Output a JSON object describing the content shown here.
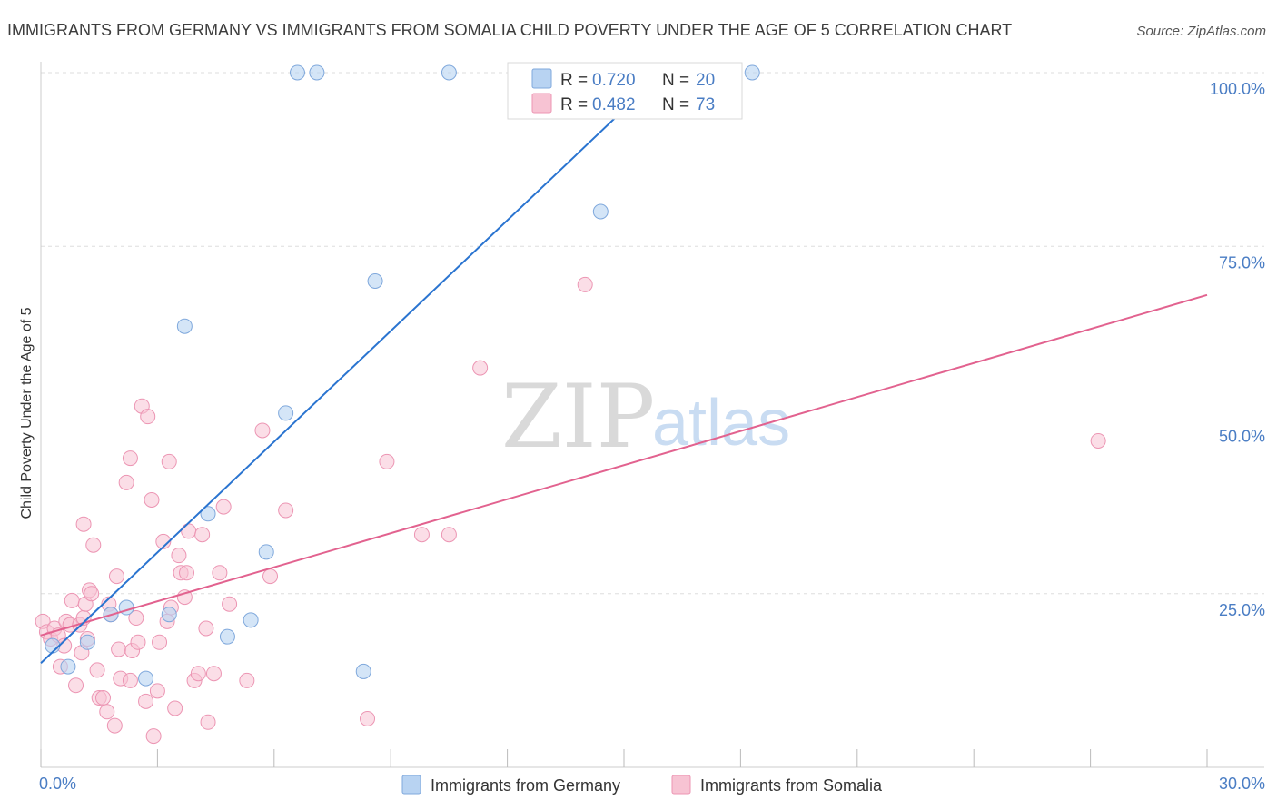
{
  "title": "IMMIGRANTS FROM GERMANY VS IMMIGRANTS FROM SOMALIA CHILD POVERTY UNDER THE AGE OF 5 CORRELATION CHART",
  "source": "Source: ZipAtlas.com",
  "watermark": {
    "zip": "ZIP",
    "atlas": "atlas"
  },
  "legend": {
    "r_label": "R = ",
    "n_label": "N = ",
    "entries": [
      {
        "r": "0.720",
        "n": "20"
      },
      {
        "r": "0.482",
        "n": "73"
      }
    ]
  },
  "colors": {
    "germany_fill": "#b8d3f2",
    "germany_stroke": "#7fa8dc",
    "germany_line": "#2a74d0",
    "somalia_fill": "#f7c3d3",
    "somalia_stroke": "#ec95b3",
    "somalia_line": "#e2628f",
    "tick_color": "#4a7dc4",
    "grid": "#dddddd"
  },
  "chart_data": {
    "type": "scatter",
    "xlabel": "",
    "ylabel": "Child Poverty Under the Age of 5",
    "xlim": [
      0,
      30
    ],
    "ylim": [
      0,
      100
    ],
    "x_tick_labels": [
      "0.0%",
      "30.0%"
    ],
    "y_tick_labels": [
      "25.0%",
      "50.0%",
      "75.0%",
      "100.0%"
    ],
    "y_ticks": [
      25,
      50,
      75,
      100
    ],
    "x_minor_ticks": [
      0,
      3,
      6,
      9,
      12,
      15,
      18,
      21,
      24,
      27,
      30
    ],
    "grid": true,
    "legend_position": "top-center",
    "series": [
      {
        "name": "Immigrants from Germany",
        "trend": {
          "x": [
            0,
            16.0
          ],
          "y": [
            15,
            100
          ]
        },
        "points": [
          [
            0.3,
            17.5
          ],
          [
            0.7,
            14.5
          ],
          [
            1.2,
            18.0
          ],
          [
            1.8,
            22.0
          ],
          [
            2.2,
            23.0
          ],
          [
            2.7,
            12.8
          ],
          [
            3.3,
            22.0
          ],
          [
            3.7,
            63.5
          ],
          [
            4.3,
            36.5
          ],
          [
            4.8,
            18.8
          ],
          [
            5.4,
            21.2
          ],
          [
            5.8,
            31.0
          ],
          [
            6.3,
            51.0
          ],
          [
            6.6,
            100
          ],
          [
            7.1,
            100
          ],
          [
            8.3,
            13.8
          ],
          [
            8.6,
            70.0
          ],
          [
            10.5,
            100
          ],
          [
            14.4,
            80.0
          ],
          [
            18.3,
            100
          ]
        ]
      },
      {
        "name": "Immigrants from Somalia",
        "trend": {
          "x": [
            0,
            30
          ],
          "y": [
            19,
            68
          ]
        },
        "points": [
          [
            0.05,
            21.0
          ],
          [
            0.15,
            19.5
          ],
          [
            0.25,
            18.5
          ],
          [
            0.35,
            20.0
          ],
          [
            0.45,
            19.0
          ],
          [
            0.5,
            14.5
          ],
          [
            0.6,
            17.5
          ],
          [
            0.65,
            21.0
          ],
          [
            0.75,
            20.5
          ],
          [
            0.8,
            24.0
          ],
          [
            0.9,
            11.8
          ],
          [
            1.0,
            20.5
          ],
          [
            1.1,
            21.5
          ],
          [
            1.1,
            35.0
          ],
          [
            1.15,
            23.5
          ],
          [
            1.2,
            18.5
          ],
          [
            1.25,
            25.5
          ],
          [
            1.3,
            25.0
          ],
          [
            1.35,
            32.0
          ],
          [
            1.45,
            14.0
          ],
          [
            1.5,
            10.0
          ],
          [
            1.6,
            10.0
          ],
          [
            1.7,
            8.0
          ],
          [
            1.75,
            23.5
          ],
          [
            1.8,
            22.0
          ],
          [
            1.9,
            6.0
          ],
          [
            1.95,
            27.5
          ],
          [
            2.0,
            17.0
          ],
          [
            2.05,
            12.8
          ],
          [
            2.2,
            41.0
          ],
          [
            2.3,
            44.5
          ],
          [
            2.3,
            12.5
          ],
          [
            2.35,
            16.8
          ],
          [
            2.45,
            21.5
          ],
          [
            2.5,
            18.0
          ],
          [
            2.6,
            52.0
          ],
          [
            2.75,
            50.5
          ],
          [
            2.85,
            38.5
          ],
          [
            2.9,
            4.5
          ],
          [
            3.0,
            11.0
          ],
          [
            3.05,
            18.0
          ],
          [
            3.15,
            32.5
          ],
          [
            3.25,
            21.0
          ],
          [
            3.3,
            44.0
          ],
          [
            3.35,
            23.0
          ],
          [
            3.45,
            8.5
          ],
          [
            3.55,
            30.5
          ],
          [
            3.6,
            28.0
          ],
          [
            3.7,
            24.5
          ],
          [
            3.75,
            28.0
          ],
          [
            3.8,
            34.0
          ],
          [
            3.95,
            12.5
          ],
          [
            4.05,
            13.5
          ],
          [
            4.15,
            33.5
          ],
          [
            4.25,
            20.0
          ],
          [
            4.3,
            6.5
          ],
          [
            4.45,
            13.5
          ],
          [
            4.6,
            28.0
          ],
          [
            4.7,
            37.5
          ],
          [
            4.85,
            23.5
          ],
          [
            5.3,
            12.5
          ],
          [
            5.7,
            48.5
          ],
          [
            5.9,
            27.5
          ],
          [
            6.3,
            37.0
          ],
          [
            8.4,
            7.0
          ],
          [
            8.9,
            44.0
          ],
          [
            9.8,
            33.5
          ],
          [
            10.5,
            33.5
          ],
          [
            11.3,
            57.5
          ],
          [
            14.0,
            69.5
          ],
          [
            27.2,
            47.0
          ],
          [
            1.05,
            16.5
          ],
          [
            2.7,
            9.5
          ]
        ]
      }
    ]
  }
}
